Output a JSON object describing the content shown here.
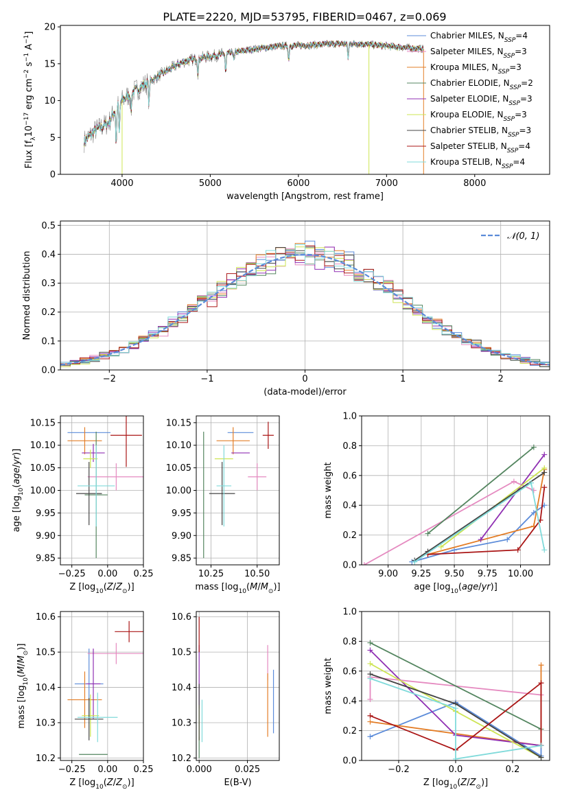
{
  "title": "PLATE=2220, MJD=53795, FIBERID=0467, z=0.069",
  "colors": {
    "Chabrier MILES": "#5b8bd9",
    "Salpeter MILES": "#e58ac0",
    "Kroupa MILES": "#e37d26",
    "Chabrier ELODIE": "#53855f",
    "Salpeter ELODIE": "#8f2fb3",
    "Kroupa ELODIE": "#cde452",
    "Chabrier STELIB": "#444444",
    "Salpeter STELIB": "#aa1515",
    "Kroupa STELIB": "#7fdada",
    "data": "#808080",
    "normal": "#5b8bd9"
  },
  "chart_data": [
    {
      "id": "spectrum",
      "type": "line",
      "title": "PLATE=2220, MJD=53795, FIBERID=0467, z=0.069",
      "xlabel": "wavelength [Angstrom, rest frame]",
      "ylabel": "Flux [f",
      "xlim": [
        3300,
        8850
      ],
      "ylim": [
        0,
        20.2
      ],
      "xticks": [
        4000,
        5000,
        6000,
        7000,
        8000
      ],
      "yticks": [
        0,
        5,
        10,
        15,
        20
      ],
      "grid": false,
      "legend": "top-right",
      "legend_entries": [
        {
          "model": "Chabrier MILES",
          "nssp": "4"
        },
        {
          "model": "Salpeter MILES",
          "nssp": "3"
        },
        {
          "model": "Kroupa MILES",
          "nssp": "3"
        },
        {
          "model": "Chabrier ELODIE",
          "nssp": "2"
        },
        {
          "model": "Salpeter ELODIE",
          "nssp": "3"
        },
        {
          "model": "Kroupa ELODIE",
          "nssp": "3"
        },
        {
          "model": "Chabrier STELIB",
          "nssp": "3"
        },
        {
          "model": "Salpeter STELIB",
          "nssp": "4"
        },
        {
          "model": "Kroupa STELIB",
          "nssp": "4"
        }
      ],
      "continuum": [
        [
          3570,
          4.5
        ],
        [
          3700,
          6.0
        ],
        [
          3850,
          7.0
        ],
        [
          3950,
          9.5
        ],
        [
          4100,
          11.0
        ],
        [
          4300,
          12.5
        ],
        [
          4500,
          14.0
        ],
        [
          4700,
          15.3
        ],
        [
          4900,
          15.8
        ],
        [
          5100,
          16.2
        ],
        [
          5300,
          16.6
        ],
        [
          5500,
          17.0
        ],
        [
          5800,
          17.4
        ],
        [
          6100,
          17.5
        ],
        [
          6400,
          17.7
        ],
        [
          6700,
          17.7
        ],
        [
          7000,
          17.4
        ],
        [
          7300,
          17.1
        ],
        [
          7420,
          17.0
        ]
      ],
      "absorption_features": [
        [
          3933,
          5.0
        ],
        [
          3968,
          4.5
        ],
        [
          4101,
          2.5
        ],
        [
          4304,
          3.0
        ],
        [
          4861,
          2.0
        ],
        [
          5175,
          2.5
        ],
        [
          5270,
          1.0
        ],
        [
          5890,
          2.0
        ],
        [
          6563,
          2.0
        ]
      ],
      "spikes": [
        [
          4000,
          0
        ],
        [
          6800,
          0
        ],
        [
          7420,
          0
        ]
      ]
    },
    {
      "id": "residuals",
      "type": "bar",
      "xlabel": "(data-model)/error",
      "ylabel": "Normed distribution",
      "xlim": [
        -2.5,
        2.5
      ],
      "ylim": [
        0,
        0.515
      ],
      "xticks": [
        -2,
        -1,
        0,
        1,
        2
      ],
      "yticks": [
        0.0,
        0.1,
        0.2,
        0.3,
        0.4,
        0.5
      ],
      "grid": true,
      "legend": "top-right",
      "legend_label": "𝒩(0, 1)",
      "bin_width": 0.1,
      "bin_start": -2.5,
      "bins": 50
    },
    {
      "id": "age_vs_Z",
      "type": "scatter",
      "xlabel": "Z [log",
      "ylabel": "age  [log",
      "xlim": [
        -0.33,
        0.25
      ],
      "ylim": [
        9.835,
        10.165
      ],
      "xticks": [
        -0.25,
        0.0,
        0.25
      ],
      "yticks": [
        9.85,
        9.9,
        9.95,
        10.0,
        10.05,
        10.1,
        10.15
      ],
      "grid": true,
      "points": [
        {
          "model": "Chabrier MILES",
          "x": -0.13,
          "xerr": 0.15,
          "y": 10.128,
          "yerr": 0.0
        },
        {
          "model": "Salpeter MILES",
          "x": 0.06,
          "xerr": 0.2,
          "y": 10.03,
          "yerr": 0.03
        },
        {
          "model": "Kroupa MILES",
          "x": -0.16,
          "xerr": 0.12,
          "y": 10.11,
          "yerr": 0.03
        },
        {
          "model": "Chabrier ELODIE",
          "x": -0.08,
          "xerr": 0.08,
          "y": 9.99,
          "yerr": 0.14
        },
        {
          "model": "Salpeter ELODIE",
          "x": -0.1,
          "xerr": 0.08,
          "y": 10.083,
          "yerr": 0.02
        },
        {
          "model": "Kroupa ELODIE",
          "x": -0.12,
          "xerr": 0.05,
          "y": 10.07,
          "yerr": 0.02
        },
        {
          "model": "Chabrier STELIB",
          "x": -0.13,
          "xerr": 0.09,
          "y": 9.993,
          "yerr": 0.07
        },
        {
          "model": "Salpeter STELIB",
          "x": 0.13,
          "xerr": 0.11,
          "y": 10.122,
          "yerr": 0.07
        },
        {
          "model": "Kroupa STELIB",
          "x": -0.08,
          "xerr": 0.13,
          "y": 10.01,
          "yerr": 0.09
        }
      ]
    },
    {
      "id": "age_vs_mass",
      "type": "scatter",
      "xlabel": "mass [log",
      "ylabel": "",
      "xlim": [
        10.17,
        10.62
      ],
      "ylim": [
        9.835,
        10.165
      ],
      "xticks": [
        10.25,
        10.5
      ],
      "yticks": [
        9.85,
        9.9,
        9.95,
        10.0,
        10.05,
        10.1,
        10.15
      ],
      "grid": true,
      "points": [
        {
          "model": "Chabrier MILES",
          "x": 10.41,
          "xerr": 0.07,
          "y": 10.128,
          "yerr": 0.0
        },
        {
          "model": "Salpeter MILES",
          "x": 10.5,
          "xerr": 0.05,
          "y": 10.03,
          "yerr": 0.03
        },
        {
          "model": "Kroupa MILES",
          "x": 10.37,
          "xerr": 0.09,
          "y": 10.11,
          "yerr": 0.03
        },
        {
          "model": "Chabrier ELODIE",
          "x": 10.21,
          "xerr": 0.0,
          "y": 9.99,
          "yerr": 0.14
        },
        {
          "model": "Salpeter ELODIE",
          "x": 10.41,
          "xerr": 0.05,
          "y": 10.083,
          "yerr": 0.0
        },
        {
          "model": "Kroupa ELODIE",
          "x": 10.32,
          "xerr": 0.05,
          "y": 10.07,
          "yerr": 0.0
        },
        {
          "model": "Chabrier STELIB",
          "x": 10.31,
          "xerr": 0.07,
          "y": 9.993,
          "yerr": 0.07
        },
        {
          "model": "Salpeter STELIB",
          "x": 10.56,
          "xerr": 0.03,
          "y": 10.122,
          "yerr": 0.03
        },
        {
          "model": "Kroupa STELIB",
          "x": 10.32,
          "xerr": 0.04,
          "y": 10.01,
          "yerr": 0.09
        }
      ]
    },
    {
      "id": "weight_vs_age",
      "type": "line",
      "xlabel": "age  [log",
      "ylabel": "mass weight",
      "xlim": [
        8.8,
        10.22
      ],
      "ylim": [
        0,
        1
      ],
      "xticks": [
        9.0,
        9.25,
        9.5,
        9.75,
        10.0
      ],
      "yticks": [
        0.0,
        0.2,
        0.4,
        0.6,
        0.8,
        1.0
      ],
      "grid": true,
      "series": [
        {
          "model": "Chabrier MILES",
          "x": [
            9.18,
            9.5,
            9.9,
            10.1,
            10.18
          ],
          "y": [
            0.02,
            0.1,
            0.17,
            0.35,
            0.4
          ]
        },
        {
          "model": "Salpeter MILES",
          "x": [
            8.82,
            9.95,
            10.1
          ],
          "y": [
            0.0,
            0.56,
            0.5
          ]
        },
        {
          "model": "Kroupa MILES",
          "x": [
            9.3,
            10.1,
            10.18
          ],
          "y": [
            0.07,
            0.26,
            0.64
          ]
        },
        {
          "model": "Chabrier ELODIE",
          "x": [
            9.3,
            10.1
          ],
          "y": [
            0.21,
            0.79
          ]
        },
        {
          "model": "Salpeter ELODIE",
          "x": [
            9.7,
            10.18
          ],
          "y": [
            0.17,
            0.74
          ]
        },
        {
          "model": "Kroupa ELODIE",
          "x": [
            9.4,
            10.18
          ],
          "y": [
            0.12,
            0.65
          ]
        },
        {
          "model": "Chabrier STELIB",
          "x": [
            9.2,
            9.3,
            10.18
          ],
          "y": [
            0.03,
            0.09,
            0.62
          ]
        },
        {
          "model": "Salpeter STELIB",
          "x": [
            9.3,
            9.98,
            10.15,
            10.18
          ],
          "y": [
            0.07,
            0.1,
            0.3,
            0.52
          ]
        },
        {
          "model": "Kroupa STELIB",
          "x": [
            9.2,
            10.08,
            10.18
          ],
          "y": [
            0.02,
            0.55,
            0.1
          ]
        }
      ]
    },
    {
      "id": "mass_vs_Z",
      "type": "scatter",
      "xlabel": "Z [log",
      "ylabel": "mass [log",
      "xlim": [
        -0.33,
        0.25
      ],
      "ylim": [
        10.193,
        10.615
      ],
      "xticks": [
        -0.25,
        0.0,
        0.25
      ],
      "yticks": [
        10.2,
        10.3,
        10.4,
        10.5,
        10.6
      ],
      "grid": true,
      "points": [
        {
          "model": "Chabrier MILES",
          "x": -0.13,
          "xerr": 0.1,
          "y": 10.41,
          "yerr": 0.1
        },
        {
          "model": "Salpeter MILES",
          "x": 0.06,
          "xerr": 0.2,
          "y": 10.496,
          "yerr": 0.03
        },
        {
          "model": "Kroupa MILES",
          "x": -0.16,
          "xerr": 0.12,
          "y": 10.365,
          "yerr": 0.08
        },
        {
          "model": "Chabrier ELODIE",
          "x": -0.1,
          "xerr": 0.1,
          "y": 10.21,
          "yerr": 0.0
        },
        {
          "model": "Salpeter ELODIE",
          "x": -0.1,
          "xerr": 0.05,
          "y": 10.41,
          "yerr": 0.1
        },
        {
          "model": "Kroupa ELODIE",
          "x": -0.12,
          "xerr": 0.06,
          "y": 10.32,
          "yerr": 0.06
        },
        {
          "model": "Chabrier STELIB",
          "x": -0.13,
          "xerr": 0.1,
          "y": 10.31,
          "yerr": 0.06
        },
        {
          "model": "Salpeter STELIB",
          "x": 0.15,
          "xerr": 0.1,
          "y": 10.558,
          "yerr": 0.03
        },
        {
          "model": "Kroupa STELIB",
          "x": -0.07,
          "xerr": 0.14,
          "y": 10.315,
          "yerr": 0.07
        }
      ]
    },
    {
      "id": "mass_vs_EBV",
      "type": "scatter",
      "xlabel": "E(B-V)",
      "ylabel": "",
      "xlim": [
        -0.0015,
        0.0415
      ],
      "ylim": [
        10.193,
        10.615
      ],
      "xticks": [
        0.0,
        0.025
      ],
      "xticklabels": [
        "0.000",
        "0.025"
      ],
      "yticks": [
        10.2,
        10.3,
        10.4,
        10.5,
        10.6
      ],
      "grid": true,
      "points": [
        {
          "model": "Chabrier MILES",
          "x": 0.0385,
          "y": 10.36,
          "yerr": 0.09
        },
        {
          "model": "Salpeter MILES",
          "x": 0.0355,
          "y": 10.47,
          "yerr": 0.05
        },
        {
          "model": "Kroupa MILES",
          "x": 0.0355,
          "y": 10.35,
          "yerr": 0.09
        },
        {
          "model": "Chabrier ELODIE",
          "x": 0.0,
          "y": 10.23,
          "yerr": 0.03
        },
        {
          "model": "Salpeter ELODIE",
          "x": 0.0,
          "y": 10.43,
          "yerr": 0.09
        },
        {
          "model": "Kroupa ELODIE",
          "x": 0.0,
          "y": 10.3,
          "yerr": 0.05
        },
        {
          "model": "Chabrier STELIB",
          "x": 0.0,
          "y": 10.33,
          "yerr": 0.08
        },
        {
          "model": "Salpeter STELIB",
          "x": 0.0,
          "y": 10.55,
          "yerr": 0.05
        },
        {
          "model": "Kroupa STELIB",
          "x": 0.0015,
          "y": 10.305,
          "yerr": 0.06
        }
      ]
    },
    {
      "id": "weight_vs_Z",
      "type": "line",
      "xlabel": "Z [log",
      "ylabel": "mass weight",
      "xlim": [
        -0.33,
        0.33
      ],
      "ylim": [
        0,
        1
      ],
      "xticks": [
        -0.2,
        0.0,
        0.2
      ],
      "yticks": [
        0.0,
        0.2,
        0.4,
        0.6,
        0.8,
        1.0
      ],
      "grid": true,
      "series": [
        {
          "model": "Chabrier MILES",
          "x": [
            -0.3,
            0.0,
            0.3,
            0.3
          ],
          "y": [
            0.16,
            0.39,
            0.03,
            0.1
          ]
        },
        {
          "model": "Salpeter MILES",
          "x": [
            -0.3,
            -0.3,
            0.3
          ],
          "y": [
            0.41,
            0.56,
            0.44
          ]
        },
        {
          "model": "Kroupa MILES",
          "x": [
            -0.3,
            0.3,
            0.3
          ],
          "y": [
            0.26,
            0.1,
            0.64
          ]
        },
        {
          "model": "Chabrier ELODIE",
          "x": [
            -0.3,
            0.3
          ],
          "y": [
            0.79,
            0.21
          ]
        },
        {
          "model": "Salpeter ELODIE",
          "x": [
            -0.3,
            0.0,
            0.3
          ],
          "y": [
            0.74,
            0.17,
            0.1
          ]
        },
        {
          "model": "Kroupa ELODIE",
          "x": [
            -0.3,
            0.0,
            0.3
          ],
          "y": [
            0.65,
            0.33,
            0.02
          ]
        },
        {
          "model": "Chabrier STELIB",
          "x": [
            -0.3,
            0.0,
            0.3
          ],
          "y": [
            0.58,
            0.38,
            0.02
          ]
        },
        {
          "model": "Salpeter STELIB",
          "x": [
            -0.3,
            0.0,
            0.3,
            0.3
          ],
          "y": [
            0.3,
            0.07,
            0.52,
            0.1
          ]
        },
        {
          "model": "Kroupa STELIB",
          "x": [
            -0.3,
            0.0,
            0.0,
            0.3
          ],
          "y": [
            0.55,
            0.35,
            0.01,
            0.1
          ]
        }
      ]
    }
  ]
}
